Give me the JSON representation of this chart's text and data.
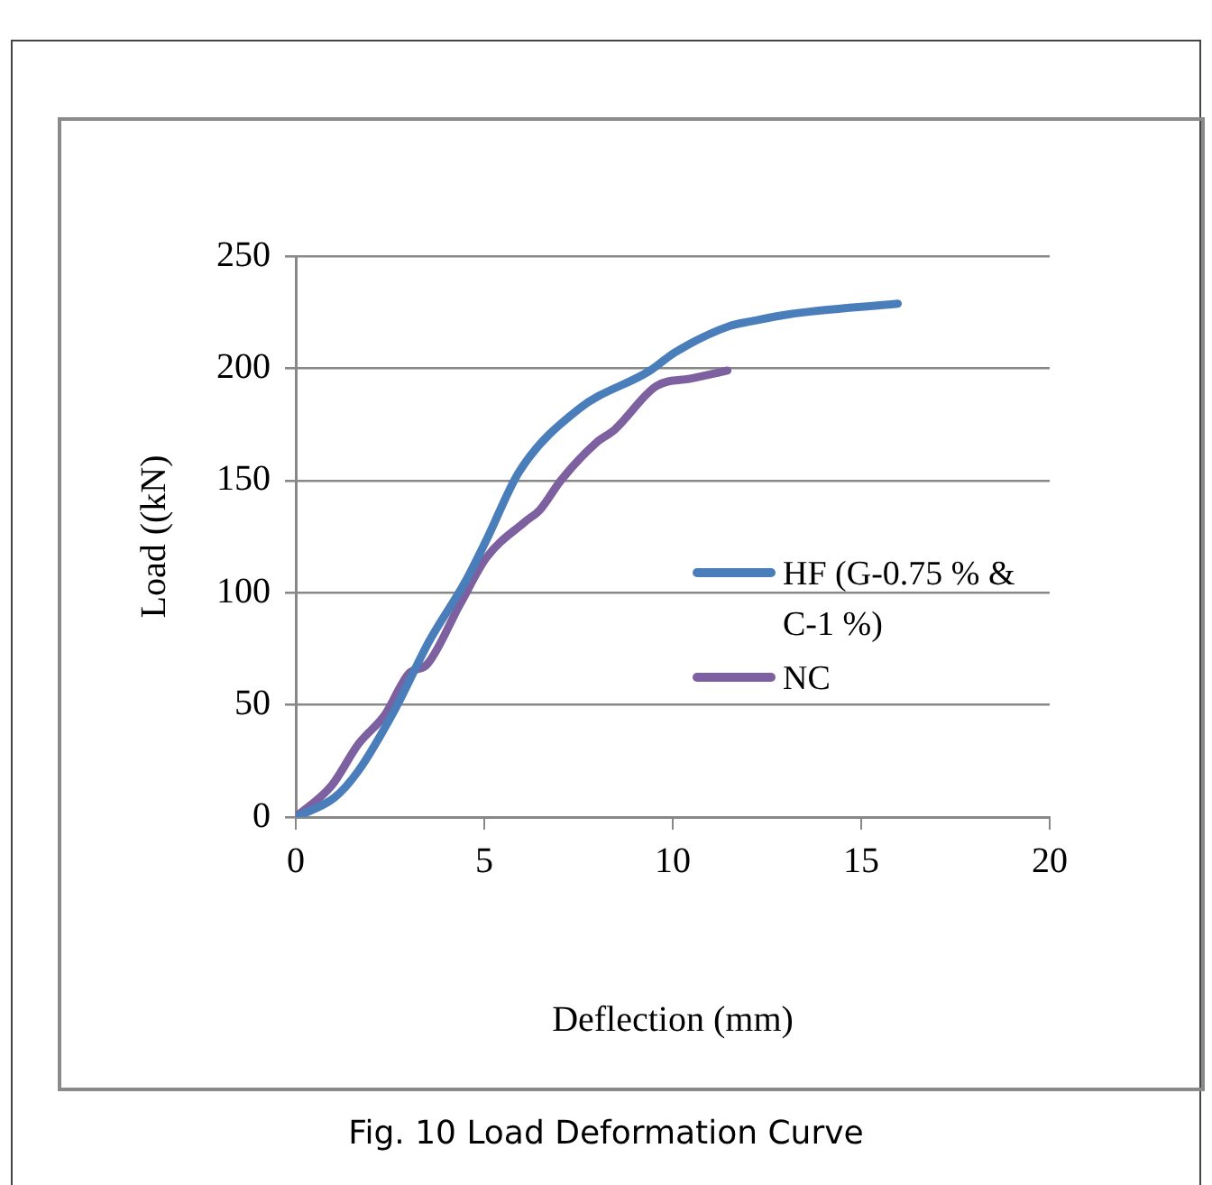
{
  "chart_data": {
    "type": "line",
    "xlabel": "Deflection (mm)",
    "ylabel": "Load ((kN)",
    "xlim": [
      0,
      20
    ],
    "xticks": [
      0,
      5,
      10,
      15,
      20
    ],
    "ylim": [
      0,
      250
    ],
    "yticks": [
      0,
      50,
      100,
      150,
      200,
      250
    ],
    "grid": "y",
    "legend": "right",
    "marker": "none",
    "line_style": "solid",
    "series": [
      {
        "name": "HF (G-0.75 % & C-1 %)",
        "color": "#4a7ebb",
        "x": [
          0,
          1.03,
          1.66,
          2.6,
          3.55,
          4.5,
          5.06,
          5.93,
          7.5,
          9.4,
          10.05,
          11.5,
          12.1,
          13.05,
          15.97
        ],
        "values": [
          0,
          8.7,
          20.6,
          47,
          78.7,
          105,
          123.6,
          154,
          181.8,
          199,
          207,
          218.8,
          221,
          224,
          228.8
        ]
      },
      {
        "name": "NC",
        "color": "#7d60a0",
        "x": [
          0,
          0.95,
          1.66,
          2.37,
          3.0,
          3.48,
          4.35,
          5.06,
          6.08,
          6.48,
          7.03,
          7.98,
          8.45,
          9.56,
          10.5,
          11.45
        ],
        "values": [
          0,
          14,
          32.5,
          45.7,
          64,
          68,
          94.6,
          115.7,
          131.6,
          137,
          150,
          167,
          172.5,
          192,
          195.5,
          199
        ]
      }
    ],
    "annotations": [
      "Fig. 10 Load Deformation Curve"
    ]
  }
}
